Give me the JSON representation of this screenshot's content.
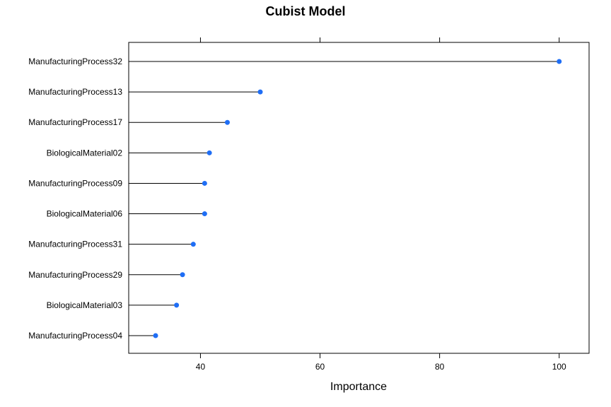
{
  "chart_data": {
    "type": "dotplot",
    "title": "Cubist Model",
    "xlabel": "Importance",
    "ylabel": "",
    "xlim": [
      28,
      105
    ],
    "x_ticks": [
      40,
      60,
      80,
      100
    ],
    "x_tick_labels": [
      "40",
      "60",
      "80",
      "100"
    ],
    "grid": false,
    "legend": "none",
    "categories": [
      "ManufacturingProcess32",
      "ManufacturingProcess13",
      "ManufacturingProcess17",
      "BiologicalMaterial02",
      "ManufacturingProcess09",
      "BiologicalMaterial06",
      "ManufacturingProcess31",
      "ManufacturingProcess29",
      "BiologicalMaterial03",
      "ManufacturingProcess04"
    ],
    "values": [
      100,
      50,
      44.5,
      41.5,
      40.7,
      40.7,
      38.8,
      37,
      36,
      32.5
    ],
    "colors": {
      "point": "#1f6ef5",
      "line": "#000000",
      "frame": "#000000"
    }
  }
}
